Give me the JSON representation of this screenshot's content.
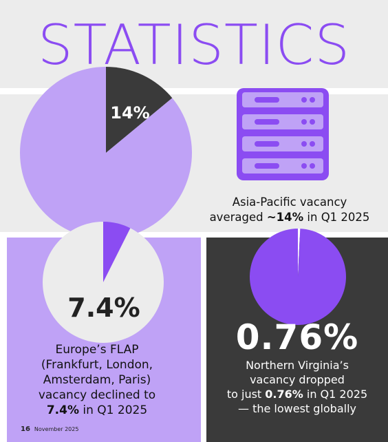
{
  "title": "STATISTICS",
  "colors": {
    "purple": "#8b4cf2",
    "light_purple": "#bfa2f6",
    "dark": "#3a3a3a",
    "panel_gray": "#ececec",
    "white": "#ffffff"
  },
  "asia_pacific": {
    "pie_label": "14%",
    "icon": "server-rack-icon",
    "caption_line1": "Asia-Pacific vacancy",
    "caption_prefix": "averaged ",
    "caption_value": "~14%",
    "caption_suffix": " in Q1 2025"
  },
  "europe": {
    "big_value": "7.4%",
    "caption_lines": [
      "Europe’s FLAP",
      "(Frankfurt, London,",
      "Amsterdam, Paris)",
      "vacancy declined to"
    ],
    "caption_value": "7.4%",
    "caption_suffix": " in Q1 2025"
  },
  "northern_virginia": {
    "big_value": "0.76%",
    "caption_line1": "Northern Virginia’s",
    "caption_line2": "vacancy dropped",
    "caption_prefix": "to just ",
    "caption_value": "0.76%",
    "caption_suffix": " in Q1 2025",
    "caption_line4": "— the lowest globally"
  },
  "footer": {
    "page_number": "16",
    "date": "November 2025"
  },
  "chart_data": [
    {
      "type": "pie",
      "slices": [
        {
          "label": "14%",
          "value": 14
        },
        {
          "label": "",
          "value": 86
        }
      ]
    },
    {
      "type": "pie",
      "slices": [
        {
          "label": "7.4%",
          "value": 7.4
        },
        {
          "label": "",
          "value": 92.6
        }
      ]
    },
    {
      "type": "pie",
      "slices": [
        {
          "label": "0.76%",
          "value": 0.76
        },
        {
          "label": "",
          "value": 99.24
        }
      ]
    }
  ]
}
